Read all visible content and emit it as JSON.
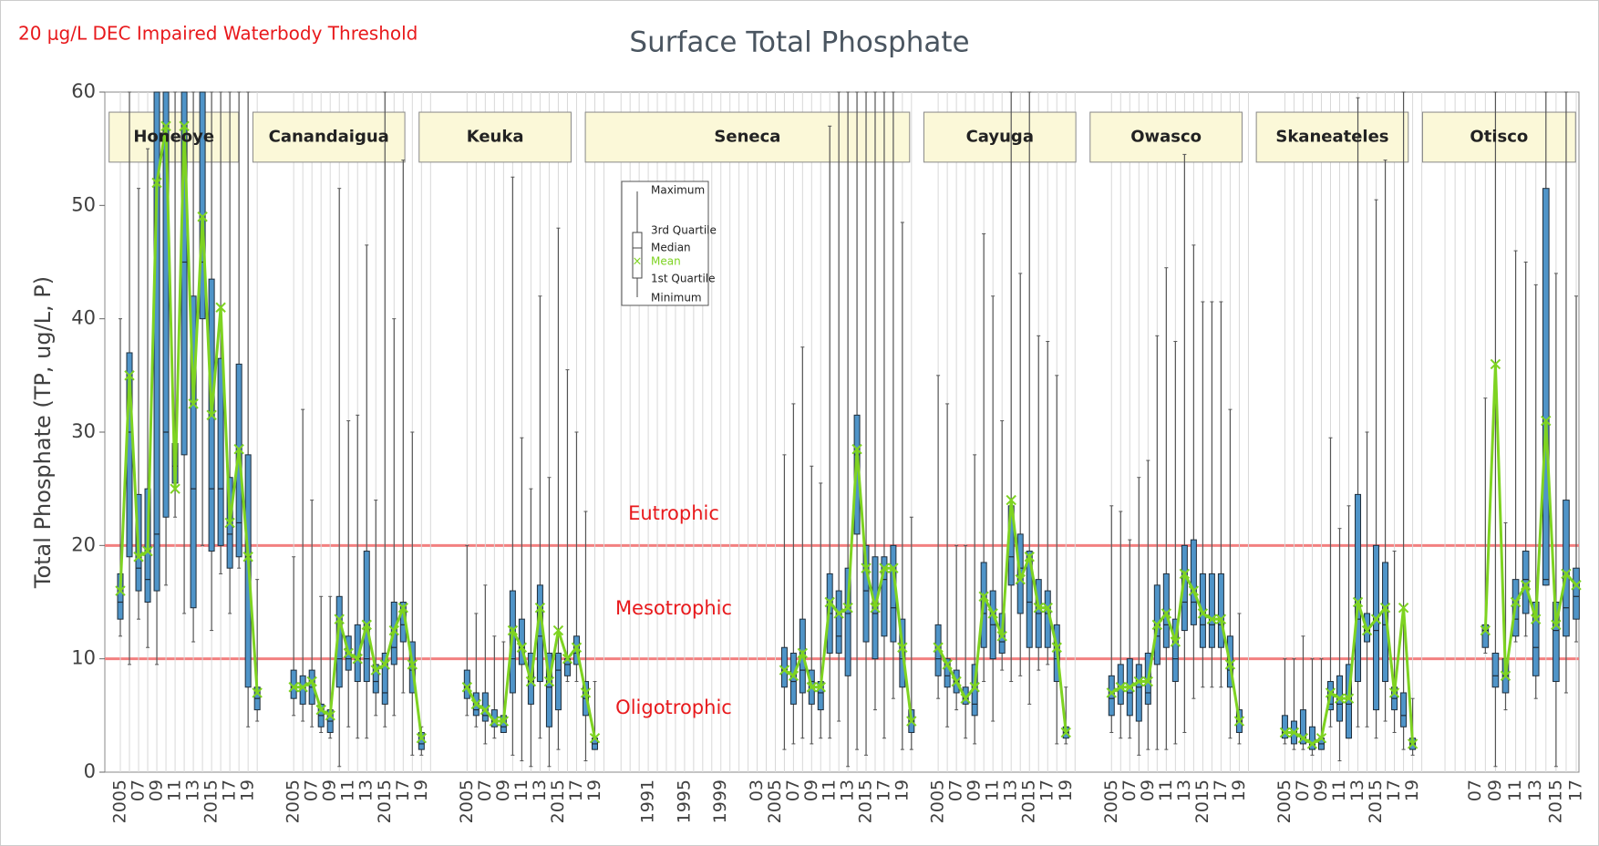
{
  "chart_data": {
    "type": "box",
    "title": "Surface Total Phosphate",
    "annotation": "20 μg/L DEC Impaired Waterbody Threshold",
    "y_label": "Total Phosphate (TP, ug/L, P)",
    "ylim": [
      0,
      60
    ],
    "yticks": [
      0,
      10,
      20,
      30,
      40,
      50,
      60
    ],
    "thresholds": [
      10,
      20
    ],
    "threshold_color": "#f28080",
    "zones": [
      "Eutrophic",
      "Mesotrophic",
      "Oligotrophic"
    ],
    "legend": [
      "Maximum",
      "3rd Quartile",
      "Median",
      "Mean",
      "1st Quartile",
      "Minimum"
    ],
    "box_color": "#4f94c8",
    "mean_color": "#7ed321",
    "panels": [
      {
        "name": "Honeoye",
        "categories": [
          "2005",
          null,
          "07",
          null,
          "09",
          null,
          "11",
          null,
          "13",
          null,
          "2015",
          null,
          "17",
          null,
          "19",
          null
        ],
        "min": [
          12,
          9.5,
          13.5,
          11,
          9.5,
          16.5,
          22.5,
          14,
          11.5,
          20,
          12.5,
          17.5,
          14,
          18,
          4,
          4.5
        ],
        "q1": [
          13.5,
          19,
          16,
          15,
          16,
          22.5,
          25.5,
          28,
          14.5,
          40,
          19.5,
          20,
          18,
          19,
          7.5,
          5.5
        ],
        "median": [
          15,
          30,
          18,
          17,
          21,
          30,
          27,
          45,
          25,
          45,
          25,
          25,
          21,
          22,
          19,
          6.5
        ],
        "q3": [
          17.5,
          37,
          24.5,
          25,
          60,
          60,
          29,
          60,
          42,
          60,
          43.5,
          36.5,
          26,
          36,
          28,
          7.5
        ],
        "max": [
          40,
          60,
          51.5,
          55,
          60,
          60,
          60,
          60,
          60,
          60,
          60,
          60,
          60,
          60,
          60,
          17
        ],
        "mean": [
          16,
          35,
          19,
          19.5,
          52,
          57,
          25,
          57,
          32.5,
          49,
          31.5,
          41,
          22,
          28.5,
          19,
          7
        ]
      },
      {
        "name": "Canandaigua",
        "categories": [
          "2005",
          null,
          "07",
          null,
          "09",
          null,
          "11",
          null,
          "13",
          null,
          "2015",
          null,
          "17",
          null,
          "19",
          null
        ],
        "min": [
          5,
          4.5,
          4,
          3.5,
          3,
          0.5,
          4,
          3,
          3,
          5,
          4,
          5,
          7,
          1.5,
          1.5,
          null
        ],
        "q1": [
          6.5,
          6,
          6,
          4,
          3.5,
          7.5,
          9,
          8,
          8,
          7,
          6,
          9.5,
          11.5,
          7,
          2,
          null
        ],
        "median": [
          7.5,
          7.5,
          7.5,
          5,
          4.5,
          10,
          10,
          10,
          10,
          8,
          7,
          11,
          13,
          9,
          2.5,
          null
        ],
        "q3": [
          9,
          8.5,
          9,
          6,
          5.5,
          15.5,
          12,
          13,
          19.5,
          9.5,
          10.5,
          15,
          15,
          11.5,
          3.5,
          null
        ],
        "max": [
          19,
          32,
          24,
          15.5,
          15.5,
          51.5,
          31,
          31.5,
          46.5,
          24,
          60,
          40,
          54,
          30,
          4,
          null
        ],
        "mean": [
          7.5,
          7.5,
          8,
          5.5,
          5,
          13.5,
          10.5,
          10,
          13,
          9,
          9.5,
          12.5,
          14.5,
          9.5,
          3,
          null
        ]
      },
      {
        "name": "Keuka",
        "categories": [
          "2005",
          null,
          "07",
          null,
          "09",
          null,
          "11",
          null,
          "13",
          null,
          "2015",
          null,
          "17",
          null,
          "19",
          null
        ],
        "min": [
          5,
          4,
          2.5,
          3,
          3.5,
          1.5,
          1,
          0.5,
          3,
          0.5,
          2,
          8,
          8,
          1,
          2,
          null
        ],
        "q1": [
          6.5,
          5,
          4.5,
          4,
          3.5,
          7,
          9.5,
          6,
          8,
          4,
          5.5,
          8.5,
          9.5,
          5,
          2,
          null
        ],
        "median": [
          7.5,
          5.5,
          5,
          4.5,
          4,
          10,
          11,
          8,
          12,
          7.5,
          9,
          9.5,
          10.5,
          6.5,
          2.5,
          null
        ],
        "q3": [
          9,
          7,
          7,
          5.5,
          5,
          16,
          13.5,
          10.5,
          16.5,
          10.5,
          10.5,
          10,
          12,
          8,
          3,
          null
        ],
        "max": [
          20,
          14,
          16.5,
          12,
          11.5,
          52.5,
          29.5,
          25,
          42,
          26,
          48,
          35.5,
          30,
          23,
          8,
          null
        ],
        "mean": [
          7.5,
          6,
          5.5,
          4.5,
          4.5,
          12.5,
          11,
          8,
          14.5,
          8,
          12.5,
          10,
          11,
          7,
          3,
          null
        ]
      },
      {
        "name": "Seneca",
        "categories": [
          null,
          null,
          null,
          "1991",
          null,
          null,
          null,
          "1995",
          null,
          null,
          null,
          "1999",
          null,
          null,
          null,
          "03",
          null,
          "2005",
          null,
          "07",
          null,
          "09",
          null,
          "11",
          null,
          "13",
          null,
          "2015",
          null,
          "17",
          null,
          "19",
          null
        ],
        "min": [
          null,
          null,
          null,
          null,
          null,
          null,
          null,
          null,
          null,
          null,
          null,
          null,
          null,
          null,
          null,
          null,
          null,
          null,
          2,
          2.5,
          3,
          2.5,
          3,
          3,
          4.5,
          0.5,
          2,
          1.5,
          5.5,
          3,
          6.5,
          2,
          2
        ],
        "q1": [
          null,
          null,
          null,
          null,
          null,
          null,
          null,
          null,
          null,
          null,
          null,
          null,
          null,
          null,
          null,
          null,
          null,
          null,
          7.5,
          6,
          7,
          6,
          5.5,
          10.5,
          10.5,
          8.5,
          21,
          11.5,
          10,
          12,
          11.5,
          7.5,
          3.5
        ],
        "median": [
          null,
          null,
          null,
          null,
          null,
          null,
          null,
          null,
          null,
          null,
          null,
          null,
          null,
          null,
          null,
          null,
          null,
          null,
          9,
          8,
          9,
          8,
          7,
          14,
          12,
          14,
          28,
          16,
          14,
          17,
          14.5,
          10,
          4.5
        ],
        "q3": [
          null,
          null,
          null,
          null,
          null,
          null,
          null,
          null,
          null,
          null,
          null,
          null,
          null,
          null,
          null,
          null,
          null,
          null,
          11,
          10.5,
          13.5,
          9,
          8,
          17.5,
          16,
          18,
          31.5,
          20,
          19,
          19,
          20,
          13.5,
          5.5
        ],
        "max": [
          null,
          null,
          null,
          null,
          null,
          null,
          null,
          null,
          null,
          null,
          null,
          null,
          null,
          null,
          null,
          null,
          null,
          null,
          28,
          32.5,
          37.5,
          27,
          25.5,
          57,
          60,
          60,
          60,
          60,
          60,
          60,
          60,
          48.5,
          22.5
        ],
        "mean": [
          null,
          null,
          null,
          null,
          null,
          null,
          null,
          null,
          null,
          null,
          null,
          null,
          null,
          null,
          null,
          null,
          null,
          null,
          9,
          8.5,
          10.5,
          7.5,
          7.5,
          15,
          14,
          14.5,
          28.5,
          18,
          14.5,
          18,
          18,
          11,
          4.5
        ]
      },
      {
        "name": "Cayuga",
        "categories": [
          "2005",
          null,
          "07",
          null,
          "09",
          null,
          "11",
          null,
          "13",
          null,
          "2015",
          null,
          "17",
          null,
          "19",
          null
        ],
        "min": [
          6.5,
          4,
          5.5,
          3,
          2.5,
          8,
          4.5,
          9,
          8,
          8.5,
          6,
          9,
          9.5,
          2.5,
          2.5,
          null
        ],
        "q1": [
          8.5,
          7.5,
          7,
          6,
          5,
          11,
          10,
          10.5,
          16.5,
          14,
          11,
          11,
          11,
          8,
          3,
          null
        ],
        "median": [
          10,
          8.5,
          8,
          6.5,
          6,
          14,
          13,
          11.5,
          19,
          18,
          15,
          14,
          14,
          10,
          3.5,
          null
        ],
        "q3": [
          13,
          10,
          9,
          7.5,
          9.5,
          18.5,
          16,
          14,
          23.5,
          21,
          19.5,
          17,
          16,
          13,
          4,
          null
        ],
        "max": [
          35,
          32.5,
          20,
          20,
          28,
          47.5,
          42,
          31,
          60,
          44,
          60,
          38.5,
          38,
          35,
          7.5,
          null
        ],
        "mean": [
          11,
          9.5,
          8,
          6.5,
          7.5,
          15.5,
          14,
          12,
          24,
          17,
          19,
          14.5,
          14.5,
          11,
          3.5,
          null
        ]
      },
      {
        "name": "Owasco",
        "categories": [
          "2005",
          null,
          "07",
          null,
          "09",
          null,
          "11",
          null,
          "13",
          null,
          "2015",
          null,
          "17",
          null,
          "19",
          null
        ],
        "min": [
          3.5,
          3,
          3,
          1.5,
          2,
          2,
          2,
          2.5,
          3.5,
          6.5,
          7.5,
          7.5,
          7.5,
          3,
          2.5,
          null
        ],
        "q1": [
          5,
          6,
          5,
          4.5,
          6,
          9.5,
          11,
          8,
          12.5,
          13,
          11,
          11,
          11,
          7.5,
          3.5,
          null
        ],
        "median": [
          6.5,
          7.5,
          7,
          7.5,
          7,
          12,
          13,
          10,
          15,
          15,
          13,
          13,
          13,
          9,
          4.5,
          null
        ],
        "q3": [
          8.5,
          9.5,
          10,
          9.5,
          10.5,
          16.5,
          17.5,
          13.5,
          20,
          20.5,
          17.5,
          17.5,
          17.5,
          12,
          5.5,
          null
        ],
        "max": [
          23.5,
          23,
          20.5,
          26,
          27.5,
          38.5,
          44.5,
          38,
          54.5,
          46.5,
          41.5,
          41.5,
          41.5,
          32,
          14,
          null
        ],
        "mean": [
          7,
          7.5,
          7.5,
          8,
          8,
          13,
          14,
          11.5,
          17.5,
          16,
          14,
          13.5,
          13.5,
          9.5,
          4.5,
          null
        ]
      },
      {
        "name": "Skaneateles",
        "categories": [
          "2005",
          null,
          "07",
          null,
          "09",
          null,
          "11",
          null,
          "13",
          null,
          "2015",
          null,
          "17",
          null,
          "19",
          null
        ],
        "min": [
          2.5,
          2,
          2,
          1.5,
          2,
          4,
          1,
          3,
          4,
          4,
          3,
          4.5,
          3.5,
          2,
          1.5,
          null
        ],
        "q1": [
          3,
          2.5,
          2.5,
          2,
          2,
          5.5,
          4.5,
          3,
          8,
          11.5,
          5.5,
          8,
          5.5,
          4,
          2,
          null
        ],
        "median": [
          3.5,
          3.5,
          3,
          2.5,
          2.5,
          6,
          6,
          6,
          13.5,
          12.5,
          12.5,
          13,
          6.5,
          5,
          2.5,
          null
        ],
        "q3": [
          5,
          4.5,
          5.5,
          4,
          3,
          8,
          8.5,
          9.5,
          24.5,
          14,
          20,
          18.5,
          7.5,
          7,
          3,
          null
        ],
        "max": [
          10,
          10,
          12,
          10,
          10,
          29.5,
          21.5,
          23.5,
          59.5,
          30,
          50.5,
          54,
          19.5,
          60,
          6.5,
          null
        ],
        "mean": [
          3.5,
          3.5,
          3,
          2.5,
          3,
          7,
          6.5,
          6.5,
          15,
          12.5,
          13.5,
          14.5,
          7,
          14.5,
          2.5,
          null
        ]
      },
      {
        "name": "Otisco",
        "categories": [
          null,
          null,
          null,
          "07",
          null,
          "09",
          null,
          "11",
          null,
          "13",
          null,
          "2015",
          null,
          "17"
        ],
        "min": [
          null,
          null,
          null,
          null,
          10.5,
          0.5,
          5.5,
          11.5,
          12,
          6.5,
          16.5,
          0.5,
          7,
          11.5
        ],
        "q1": [
          null,
          null,
          null,
          null,
          11,
          7.5,
          7,
          12,
          14,
          8.5,
          16.5,
          8,
          12,
          13.5
        ],
        "median": [
          null,
          null,
          null,
          null,
          12.5,
          8.5,
          8.5,
          13.5,
          17,
          11,
          17,
          12.5,
          14.5,
          15.5
        ],
        "q3": [
          null,
          null,
          null,
          null,
          13,
          10.5,
          10,
          17,
          19.5,
          15,
          51.5,
          15,
          24,
          18
        ],
        "max": [
          null,
          null,
          null,
          null,
          33,
          60,
          22,
          46,
          45,
          43,
          60,
          44,
          60,
          42
        ],
        "mean": [
          null,
          null,
          null,
          null,
          12.5,
          36,
          8.5,
          15,
          16.5,
          13.5,
          31,
          13,
          17.5,
          16.5
        ]
      }
    ]
  }
}
